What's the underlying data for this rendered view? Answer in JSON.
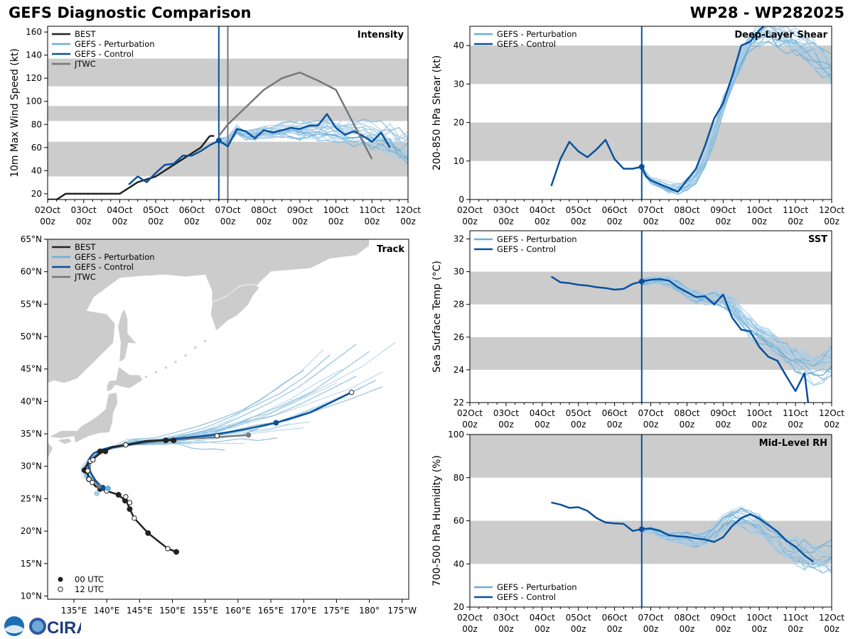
{
  "header": {
    "title": "GEFS Diagnostic Comparison",
    "storm_id": "WP28 - WP282025"
  },
  "logo": {
    "text": "CIRA"
  },
  "time_axis": {
    "tick_labels": [
      "02Oct",
      "03Oct",
      "04Oct",
      "05Oct",
      "06Oct",
      "07Oct",
      "08Oct",
      "09Oct",
      "10Oct",
      "11Oct",
      "12Oct"
    ],
    "tick_sublabel": "00z"
  },
  "colors": {
    "best": "#222222",
    "perturbation": "#6baed6",
    "perturbation_light": "#a8cde6",
    "control": "#08519c",
    "jtwc": "#777777",
    "band": "#cccccc",
    "land": "#cccccc"
  },
  "chart_data": [
    {
      "id": "intensity",
      "type": "line",
      "title": "Intensity",
      "ylabel": "10m Max Wind Speed (kt)",
      "xunit": "days since 02Oct 00z",
      "xlim": [
        0,
        10
      ],
      "ylim": [
        15,
        165
      ],
      "yticks": [
        20,
        40,
        60,
        80,
        100,
        120,
        140,
        160
      ],
      "bands": [
        [
          35,
          65
        ],
        [
          83,
          96
        ],
        [
          113,
          137
        ]
      ],
      "vlines": [
        {
          "x": 4.75,
          "color": "control"
        },
        {
          "x": 5.0,
          "color": "jtwc"
        }
      ],
      "legend": [
        "BEST",
        "GEFS - Perturbation",
        "GEFS - Control",
        "JTWC"
      ],
      "series": [
        {
          "name": "BEST",
          "color": "best",
          "width": 2.5,
          "x": [
            0,
            0.25,
            0.5,
            1,
            1.5,
            2,
            2.5,
            3,
            3.5,
            4,
            4.25,
            4.5
          ],
          "y": [
            15,
            15,
            20,
            20,
            20,
            20,
            30,
            35,
            45,
            55,
            60,
            70
          ]
        },
        {
          "name": "BEST",
          "color": "best",
          "width": 2.5,
          "x": [
            4.5,
            4.62
          ],
          "y": [
            70,
            70
          ]
        },
        {
          "name": "GEFS - Control",
          "color": "control",
          "width": 2.5,
          "x": [
            2.25,
            2.5,
            2.75,
            3,
            3.25,
            3.5,
            3.75,
            4,
            4.25,
            4.5,
            4.75,
            5,
            5.25,
            5.5,
            5.75,
            6,
            6.25,
            6.5,
            6.75,
            7,
            7.25,
            7.5,
            7.75,
            8,
            8.25,
            8.5,
            8.75,
            9,
            9.25,
            9.5
          ],
          "y": [
            28,
            35,
            30,
            38,
            45,
            46,
            53,
            53,
            57,
            62,
            66,
            61,
            76,
            74,
            68,
            75,
            73,
            75,
            77,
            76,
            79,
            79,
            89,
            77,
            71,
            74,
            70,
            65,
            73,
            60
          ]
        },
        {
          "name": "JTWC",
          "color": "jtwc",
          "width": 2.5,
          "x": [
            4.75,
            5,
            5.5,
            6,
            6.5,
            7,
            7.5,
            8,
            8.5,
            9
          ],
          "y": [
            70,
            80,
            95,
            110,
            120,
            125,
            118,
            110,
            80,
            50
          ]
        }
      ],
      "ensemble": {
        "x_start": 4.75,
        "x_end": 10,
        "members": 21,
        "base": [
          66,
          66,
          75,
          71,
          72,
          74,
          74,
          75,
          76,
          75,
          76,
          76,
          77,
          75,
          75,
          74,
          72,
          71,
          69,
          66,
          63,
          58
        ]
      }
    },
    {
      "id": "shear",
      "type": "line",
      "title": "Deep-Layer Shear",
      "ylabel": "200-850 hPa Shear (kt)",
      "xunit": "days since 02Oct 00z",
      "xlim": [
        0,
        10
      ],
      "ylim": [
        0,
        45
      ],
      "yticks": [
        0,
        10,
        20,
        30,
        40
      ],
      "bands": [
        [
          10,
          20
        ],
        [
          30,
          40
        ]
      ],
      "vlines": [
        {
          "x": 4.75,
          "color": "control"
        }
      ],
      "legend": [
        "GEFS - Perturbation",
        "GEFS - Control"
      ],
      "series": [
        {
          "name": "GEFS - Control",
          "color": "control",
          "width": 2.5,
          "x": [
            2.25,
            2.5,
            2.75,
            3,
            3.25,
            3.5,
            3.75,
            4,
            4.25,
            4.5,
            4.75,
            4.875,
            5,
            5.25,
            5.5,
            5.75,
            6,
            6.25,
            6.5,
            6.75,
            7,
            7.25,
            7.5,
            7.75,
            8,
            8.25,
            8.5,
            8.75,
            9
          ],
          "y": [
            3.5,
            10.5,
            15,
            12.5,
            11,
            13,
            15.5,
            10.5,
            8,
            8,
            8.5,
            6,
            5,
            4,
            3,
            2,
            5,
            8,
            14,
            21,
            25,
            32,
            40,
            41,
            44,
            46,
            47,
            46,
            45
          ]
        }
      ],
      "ensemble": {
        "x_start": 4.75,
        "x_end": 10,
        "members": 21,
        "base": [
          8,
          5,
          4,
          3,
          3,
          4,
          6,
          10,
          17,
          25,
          31,
          37,
          41,
          43,
          44,
          43,
          42,
          41,
          40,
          38,
          36,
          34
        ]
      }
    },
    {
      "id": "sst",
      "type": "line",
      "title": "SST",
      "ylabel": "Sea Surface Temp (°C)",
      "xunit": "days since 02Oct 00z",
      "xlim": [
        0,
        10
      ],
      "ylim": [
        22,
        32.5
      ],
      "yticks": [
        22,
        24,
        26,
        28,
        30,
        32
      ],
      "bands": [
        [
          24,
          26
        ],
        [
          28,
          30
        ]
      ],
      "vlines": [
        {
          "x": 4.75,
          "color": "control"
        }
      ],
      "legend": [
        "GEFS - Perturbation",
        "GEFS - Control"
      ],
      "series": [
        {
          "name": "GEFS - Control",
          "color": "control",
          "width": 2.5,
          "x": [
            2.25,
            2.5,
            2.75,
            3,
            3.25,
            3.5,
            3.75,
            4,
            4.25,
            4.5,
            4.75,
            5,
            5.25,
            5.5,
            5.75,
            6,
            6.25,
            6.5,
            6.75,
            7,
            7.25,
            7.5,
            7.75,
            8,
            8.25,
            8.5,
            8.75,
            9,
            9.25,
            9.35,
            9.5
          ],
          "y": [
            29.7,
            29.35,
            29.3,
            29.2,
            29.15,
            29.05,
            29.0,
            28.9,
            28.95,
            29.25,
            29.4,
            29.5,
            29.55,
            29.45,
            29.05,
            28.75,
            28.45,
            28.5,
            28.0,
            28.6,
            27.2,
            26.45,
            26.35,
            25.4,
            24.8,
            24.55,
            23.6,
            22.7,
            23.8,
            22.0,
            21.5
          ]
        }
      ],
      "ensemble": {
        "x_start": 4.75,
        "x_end": 10,
        "members": 21,
        "base": [
          29.35,
          29.45,
          29.5,
          29.4,
          29.1,
          28.8,
          28.5,
          28.4,
          28.4,
          28.2,
          27.9,
          27.2,
          26.6,
          26.1,
          25.8,
          25.3,
          25.0,
          24.6,
          24.3,
          24.1,
          24.3,
          24.6
        ]
      }
    },
    {
      "id": "rh",
      "type": "line",
      "title": "Mid-Level RH",
      "ylabel": "700-500 hPa Humidity (%)",
      "xunit": "days since 02Oct 00z",
      "xlim": [
        0,
        10
      ],
      "ylim": [
        20,
        100
      ],
      "yticks": [
        20,
        40,
        60,
        80,
        100
      ],
      "bands": [
        [
          40,
          60
        ],
        [
          80,
          100
        ]
      ],
      "vlines": [
        {
          "x": 4.75,
          "color": "control"
        }
      ],
      "legend": [
        "GEFS - Perturbation",
        "GEFS - Control"
      ],
      "series": [
        {
          "name": "GEFS - Control",
          "color": "control",
          "width": 2.5,
          "x": [
            2.25,
            2.5,
            2.75,
            3,
            3.25,
            3.5,
            3.75,
            4,
            4.25,
            4.5,
            4.75,
            5,
            5.25,
            5.5,
            5.75,
            6,
            6.25,
            6.5,
            6.75,
            7,
            7.25,
            7.5,
            7.75,
            8,
            8.25,
            8.5,
            8.75,
            9,
            9.25,
            9.5
          ],
          "y": [
            68.5,
            67.5,
            66,
            66.3,
            64.6,
            61.3,
            59.2,
            58.8,
            58.6,
            55.3,
            56.1,
            56.4,
            55.4,
            53.3,
            52.8,
            52.5,
            51.8,
            51.3,
            50.2,
            52.4,
            57.6,
            61.2,
            63.1,
            61.0,
            58.0,
            55.0,
            50.7,
            48.0,
            44.0,
            41.0
          ]
        }
      ],
      "ensemble": {
        "x_start": 4.75,
        "x_end": 10,
        "members": 21,
        "base": [
          56,
          55.5,
          54,
          53,
          52,
          52,
          51,
          52,
          55,
          59,
          62,
          62,
          60,
          58,
          55,
          52,
          49,
          47,
          45,
          44,
          43,
          44
        ]
      }
    },
    {
      "id": "track",
      "type": "scatter",
      "title": "Track",
      "xlabel_ticks": [
        "135°E",
        "140°E",
        "145°E",
        "150°E",
        "155°E",
        "160°E",
        "165°E",
        "170°E",
        "175°E",
        "180°",
        "175°W"
      ],
      "ylabel_ticks": [
        "10°N",
        "15°N",
        "20°N",
        "25°N",
        "30°N",
        "35°N",
        "40°N",
        "45°N",
        "50°N",
        "55°N",
        "60°N",
        "65°N"
      ],
      "lon_range": [
        131,
        186
      ],
      "lat_range": [
        9.5,
        65
      ],
      "lon_ticks": [
        135,
        140,
        145,
        150,
        155,
        160,
        165,
        170,
        175,
        180,
        185
      ],
      "lat_ticks": [
        10,
        15,
        20,
        25,
        30,
        35,
        40,
        45,
        50,
        55,
        60,
        65
      ],
      "legend": [
        "BEST",
        "GEFS - Perturbation",
        "GEFS - Control",
        "JTWC"
      ],
      "marker_legend": [
        "00 UTC",
        "12 UTC"
      ],
      "best_track": {
        "lon": [
          150.6,
          149.3,
          146.3,
          144.2,
          143.5,
          143.1,
          142.8,
          141.8,
          140.0,
          139.0,
          138.3,
          137.8,
          137.3,
          137.1,
          136.8,
          136.6,
          137.4,
          138.0,
          139.0,
          139.8,
          140.8,
          142.9,
          146.0,
          148.0,
          150.0
        ],
        "lat": [
          16.8,
          17.3,
          19.7,
          22.0,
          23.4,
          24.4,
          24.7,
          25.6,
          26.2,
          26.5,
          26.9,
          27.5,
          28.0,
          28.9,
          29.3,
          29.6,
          30.8,
          31.2,
          32.0,
          32.4,
          32.9,
          33.3,
          33.9,
          34.0,
          34.0
        ]
      },
      "best_markers_00": {
        "lon": [
          150.6,
          146.3,
          143.5,
          142.8,
          141.8,
          139.0,
          137.3,
          136.8,
          136.6,
          139.0,
          139.8,
          149.0,
          150.2
        ],
        "lat": [
          16.8,
          19.7,
          23.4,
          24.7,
          25.6,
          26.5,
          28.0,
          29.3,
          29.4,
          32.3,
          32.3,
          34.0,
          34.0
        ]
      },
      "best_markers_12": {
        "lon": [
          149.3,
          144.2,
          143.5,
          142.9,
          140.0,
          137.8,
          137.3,
          137.1,
          137.5,
          137.9,
          142.9,
          156.8,
          177.3
        ],
        "lat": [
          17.3,
          22.0,
          24.4,
          25.3,
          26.2,
          27.5,
          28.0,
          29.3,
          30.8,
          31.0,
          33.3,
          34.7,
          41.4
        ]
      },
      "control_track": {
        "lon": [
          139.4,
          139.0,
          138.3,
          137.8,
          137.3,
          137.1,
          137.5,
          138.0,
          139.0,
          140.8,
          143.0,
          146.0,
          150.0,
          156.0,
          161.0,
          165.8,
          171.0,
          177.3
        ],
        "lat": [
          26.7,
          27.1,
          27.8,
          28.6,
          29.5,
          30.5,
          31.4,
          32.0,
          32.5,
          33.0,
          33.3,
          33.8,
          34.2,
          34.8,
          35.7,
          36.7,
          38.3,
          41.4
        ]
      },
      "control_markers": {
        "lon": [
          139.4,
          165.8
        ],
        "lat": [
          26.7,
          36.7
        ]
      },
      "jtwc_track": {
        "lon": [
          138.8,
          138.4,
          137.9,
          137.5,
          137.4,
          137.8,
          138.8,
          140.5,
          143.0,
          146.0,
          149.0,
          152.0,
          156.8,
          161.6
        ],
        "lat": [
          26.9,
          27.5,
          28.3,
          29.2,
          30.2,
          31.2,
          32.2,
          32.8,
          33.2,
          33.6,
          34.0,
          34.2,
          34.5,
          34.8
        ]
      },
      "jtwc_markers": {
        "lon": [
          138.8,
          161.6
        ],
        "lat": [
          26.9,
          34.8
        ]
      },
      "ensemble_end": {
        "lon": [
          179,
          181,
          182,
          180,
          176,
          174,
          173,
          170,
          172,
          182,
          184,
          178,
          175,
          178,
          171,
          166,
          168,
          158,
          161,
          163,
          170
        ],
        "lat": [
          42,
          43,
          44.7,
          47.5,
          45.2,
          47,
          48,
          44.8,
          41.5,
          42.3,
          49,
          48.7,
          43,
          44,
          37,
          34.4,
          36.4,
          32.2,
          33.4,
          35.5,
          36
        ]
      }
    }
  ]
}
